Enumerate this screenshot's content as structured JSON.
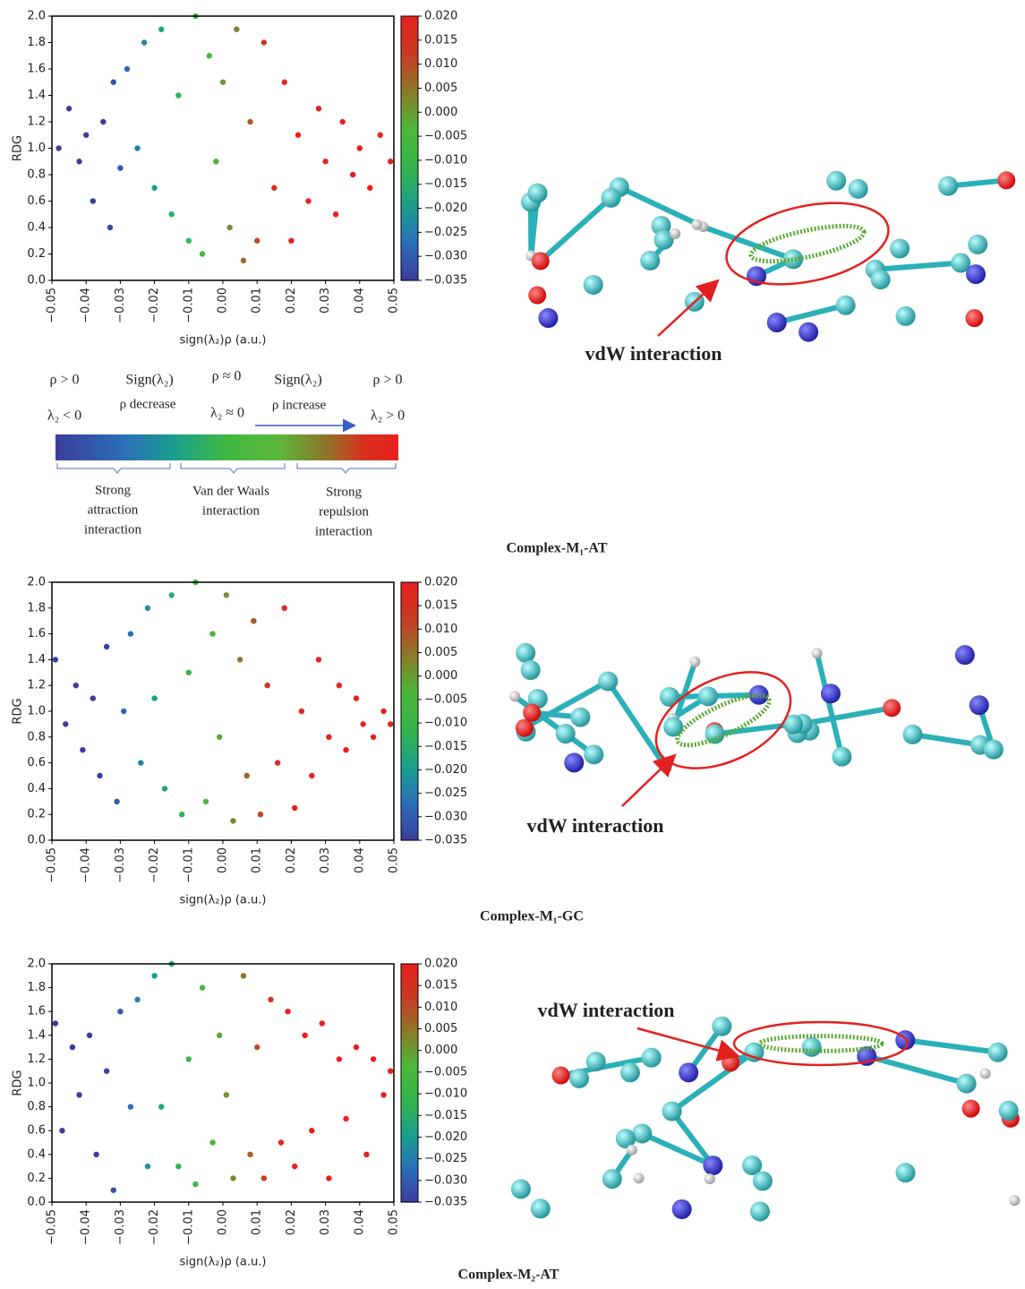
{
  "chart_data": [
    {
      "type": "scatter",
      "caption": "Complex-M₁-AT",
      "annotation": "vdW interaction",
      "xlabel": "sign(λ₂)ρ (a.u.)",
      "ylabel": "RDG",
      "xlim": [
        -0.05,
        0.05
      ],
      "ylim": [
        0,
        2
      ],
      "xticks": [
        {
          "value": -0.05,
          "label": "−0.05"
        },
        {
          "value": -0.04,
          "label": "−0.04"
        },
        {
          "value": -0.03,
          "label": "−0.03"
        },
        {
          "value": -0.02,
          "label": "−0.02"
        },
        {
          "value": -0.01,
          "label": "−0.01"
        },
        {
          "value": 0,
          "label": "0.00"
        },
        {
          "value": 0.01,
          "label": "0.01"
        },
        {
          "value": 0.02,
          "label": "0.02"
        },
        {
          "value": 0.03,
          "label": "0.03"
        },
        {
          "value": 0.04,
          "label": "0.04"
        },
        {
          "value": 0.05,
          "label": "0.05"
        }
      ],
      "yticks": [
        {
          "value": 0,
          "label": "0.0"
        },
        0.2,
        0.4,
        0.6,
        0.8,
        {
          "value": 1,
          "label": "1.0"
        },
        1.2,
        1.4,
        1.6,
        1.8,
        {
          "value": 2,
          "label": "2.0"
        }
      ],
      "clim": [
        -0.035,
        0.02
      ],
      "cticks": [
        {
          "value": 0.02,
          "label": "0.020"
        },
        {
          "value": 0.015,
          "label": "0.015"
        },
        {
          "value": 0.01,
          "label": "0.010"
        },
        {
          "value": 0.005,
          "label": "0.005"
        },
        {
          "value": 0,
          "label": "0.000"
        },
        {
          "value": -0.005,
          "label": "−0.005"
        },
        {
          "value": -0.01,
          "label": "−0.010"
        },
        {
          "value": -0.015,
          "label": "−0.015"
        },
        {
          "value": -0.02,
          "label": "−0.020"
        },
        {
          "value": -0.025,
          "label": "−0.025"
        },
        {
          "value": -0.03,
          "label": "−0.030"
        },
        {
          "value": -0.035,
          "label": "−0.035"
        }
      ],
      "colormap": [
        "#3b3d9c",
        "#2a6fb8",
        "#1aa08c",
        "#35b44a",
        "#4cb83a",
        "#8a7a2a",
        "#c83a26",
        "#e8201e"
      ],
      "x": [
        -0.048,
        -0.045,
        -0.042,
        -0.04,
        -0.038,
        -0.035,
        -0.033,
        -0.032,
        -0.03,
        -0.028,
        -0.025,
        -0.023,
        -0.02,
        -0.018,
        -0.015,
        -0.013,
        -0.01,
        -0.008,
        -0.006,
        -0.004,
        -0.002,
        0,
        0.002,
        0.004,
        0.006,
        0.008,
        0.01,
        0.012,
        0.015,
        0.018,
        0.02,
        0.022,
        0.025,
        0.028,
        0.03,
        0.033,
        0.035,
        0.038,
        0.04,
        0.043,
        0.046,
        0.049
      ],
      "values": [
        1.0,
        1.3,
        0.9,
        1.1,
        0.6,
        1.2,
        0.4,
        1.5,
        0.85,
        1.6,
        1.0,
        1.8,
        0.7,
        1.9,
        0.5,
        1.4,
        0.3,
        2.0,
        0.2,
        1.7,
        0.9,
        1.5,
        0.4,
        1.9,
        0.15,
        1.2,
        0.3,
        1.8,
        0.7,
        1.5,
        0.3,
        1.1,
        0.6,
        1.3,
        0.9,
        0.5,
        1.2,
        0.8,
        1.0,
        0.7,
        1.1,
        0.9
      ]
    },
    {
      "type": "scatter",
      "caption": "Complex-M₁-GC",
      "annotation": "vdW interaction",
      "xlabel": "sign(λ₂)ρ (a.u.)",
      "ylabel": "RDG",
      "xlim": [
        -0.05,
        0.05
      ],
      "ylim": [
        0,
        2
      ],
      "xticks": [
        {
          "value": -0.05,
          "label": "−0.05"
        },
        {
          "value": -0.04,
          "label": "−0.04"
        },
        {
          "value": -0.03,
          "label": "−0.03"
        },
        {
          "value": -0.02,
          "label": "−0.02"
        },
        {
          "value": -0.01,
          "label": "−0.01"
        },
        {
          "value": 0,
          "label": "0.00"
        },
        {
          "value": 0.01,
          "label": "0.01"
        },
        {
          "value": 0.02,
          "label": "0.02"
        },
        {
          "value": 0.03,
          "label": "0.03"
        },
        {
          "value": 0.04,
          "label": "0.04"
        },
        {
          "value": 0.05,
          "label": "0.05"
        }
      ],
      "yticks": [
        {
          "value": 0,
          "label": "0.0"
        },
        0.2,
        0.4,
        0.6,
        0.8,
        {
          "value": 1,
          "label": "1.0"
        },
        1.2,
        1.4,
        1.6,
        1.8,
        {
          "value": 2,
          "label": "2.0"
        }
      ],
      "clim": [
        -0.035,
        0.02
      ],
      "cticks": [
        {
          "value": 0.02,
          "label": "0.020"
        },
        {
          "value": 0.015,
          "label": "0.015"
        },
        {
          "value": 0.01,
          "label": "0.010"
        },
        {
          "value": 0.005,
          "label": "0.005"
        },
        {
          "value": 0,
          "label": "0.000"
        },
        {
          "value": -0.005,
          "label": "−0.005"
        },
        {
          "value": -0.01,
          "label": "−0.010"
        },
        {
          "value": -0.015,
          "label": "−0.015"
        },
        {
          "value": -0.02,
          "label": "−0.020"
        },
        {
          "value": -0.025,
          "label": "−0.025"
        },
        {
          "value": -0.03,
          "label": "−0.030"
        },
        {
          "value": -0.035,
          "label": "−0.035"
        }
      ],
      "colormap": [
        "#3b3d9c",
        "#2a6fb8",
        "#1aa08c",
        "#35b44a",
        "#4cb83a",
        "#8a7a2a",
        "#c83a26",
        "#e8201e"
      ],
      "x": [
        -0.049,
        -0.046,
        -0.043,
        -0.041,
        -0.038,
        -0.036,
        -0.034,
        -0.031,
        -0.029,
        -0.027,
        -0.024,
        -0.022,
        -0.02,
        -0.017,
        -0.015,
        -0.012,
        -0.01,
        -0.008,
        -0.005,
        -0.003,
        -0.001,
        0.001,
        0.003,
        0.005,
        0.007,
        0.009,
        0.011,
        0.013,
        0.016,
        0.018,
        0.021,
        0.023,
        0.026,
        0.028,
        0.031,
        0.034,
        0.036,
        0.039,
        0.041,
        0.044,
        0.047,
        0.049
      ],
      "values": [
        1.4,
        0.9,
        1.2,
        0.7,
        1.1,
        0.5,
        1.5,
        0.3,
        1.0,
        1.6,
        0.6,
        1.8,
        1.1,
        0.4,
        1.9,
        0.2,
        1.3,
        2.0,
        0.3,
        1.6,
        0.8,
        1.9,
        0.15,
        1.4,
        0.5,
        1.7,
        0.2,
        1.2,
        0.6,
        1.8,
        0.25,
        1.0,
        0.5,
        1.4,
        0.8,
        1.2,
        0.7,
        1.1,
        0.9,
        0.8,
        1.0,
        0.9
      ]
    },
    {
      "type": "scatter",
      "caption": "Complex-M₂-AT",
      "annotation": "vdW interaction",
      "xlabel": "sign(λ₂)ρ (a.u.)",
      "ylabel": "RDG",
      "xlim": [
        -0.05,
        0.05
      ],
      "ylim": [
        0,
        2
      ],
      "xticks": [
        {
          "value": -0.05,
          "label": "−0.05"
        },
        {
          "value": -0.04,
          "label": "−0.04"
        },
        {
          "value": -0.03,
          "label": "−0.03"
        },
        {
          "value": -0.02,
          "label": "−0.02"
        },
        {
          "value": -0.01,
          "label": "−0.01"
        },
        {
          "value": 0,
          "label": "0.00"
        },
        {
          "value": 0.01,
          "label": "0.01"
        },
        {
          "value": 0.02,
          "label": "0.02"
        },
        {
          "value": 0.03,
          "label": "0.03"
        },
        {
          "value": 0.04,
          "label": "0.04"
        },
        {
          "value": 0.05,
          "label": "0.05"
        }
      ],
      "yticks": [
        {
          "value": 0,
          "label": "0.0"
        },
        0.2,
        0.4,
        0.6,
        0.8,
        {
          "value": 1,
          "label": "1.0"
        },
        1.2,
        1.4,
        1.6,
        1.8,
        {
          "value": 2,
          "label": "2.0"
        }
      ],
      "clim": [
        -0.035,
        0.02
      ],
      "cticks": [
        {
          "value": 0.02,
          "label": "0.020"
        },
        {
          "value": 0.015,
          "label": "0.015"
        },
        {
          "value": 0.01,
          "label": "0.010"
        },
        {
          "value": 0.005,
          "label": "0.005"
        },
        {
          "value": 0,
          "label": "0.000"
        },
        {
          "value": -0.005,
          "label": "−0.005"
        },
        {
          "value": -0.01,
          "label": "−0.010"
        },
        {
          "value": -0.015,
          "label": "−0.015"
        },
        {
          "value": -0.02,
          "label": "−0.020"
        },
        {
          "value": -0.025,
          "label": "−0.025"
        },
        {
          "value": -0.03,
          "label": "−0.030"
        },
        {
          "value": -0.035,
          "label": "−0.035"
        }
      ],
      "colormap": [
        "#3b3d9c",
        "#2a6fb8",
        "#1aa08c",
        "#35b44a",
        "#4cb83a",
        "#8a7a2a",
        "#c83a26",
        "#e8201e"
      ],
      "x": [
        -0.049,
        -0.047,
        -0.044,
        -0.042,
        -0.039,
        -0.037,
        -0.034,
        -0.032,
        -0.03,
        -0.027,
        -0.025,
        -0.022,
        -0.02,
        -0.018,
        -0.015,
        -0.013,
        -0.01,
        -0.008,
        -0.006,
        -0.003,
        -0.001,
        0.001,
        0.003,
        0.006,
        0.008,
        0.01,
        0.012,
        0.014,
        0.017,
        0.019,
        0.021,
        0.024,
        0.026,
        0.029,
        0.031,
        0.034,
        0.036,
        0.039,
        0.042,
        0.044,
        0.047,
        0.049
      ],
      "values": [
        1.5,
        0.6,
        1.3,
        0.9,
        1.4,
        0.4,
        1.1,
        0.1,
        1.6,
        0.8,
        1.7,
        0.3,
        1.9,
        0.8,
        2.0,
        0.3,
        1.2,
        0.15,
        1.8,
        0.5,
        1.4,
        0.9,
        0.2,
        1.9,
        0.4,
        1.3,
        0.2,
        1.7,
        0.5,
        1.6,
        0.3,
        1.4,
        0.6,
        1.5,
        0.2,
        1.2,
        0.7,
        1.3,
        0.4,
        1.2,
        0.9,
        1.1
      ]
    }
  ],
  "legend_schematic": {
    "top": [
      "ρ > 0",
      "Sign(λ₂)",
      "ρ ≈ 0",
      "Sign(λ₂)",
      "ρ > 0"
    ],
    "middle": [
      "ρ decrease",
      "ρ increase"
    ],
    "bottom": [
      "λ₂ < 0",
      "λ₂ ≈ 0",
      "λ₂ > 0"
    ],
    "labels": [
      [
        "Strong",
        "attraction",
        "interaction"
      ],
      [
        "Van der Waals",
        "interaction"
      ],
      [
        "Strong",
        "repulsion",
        "interaction"
      ]
    ]
  }
}
